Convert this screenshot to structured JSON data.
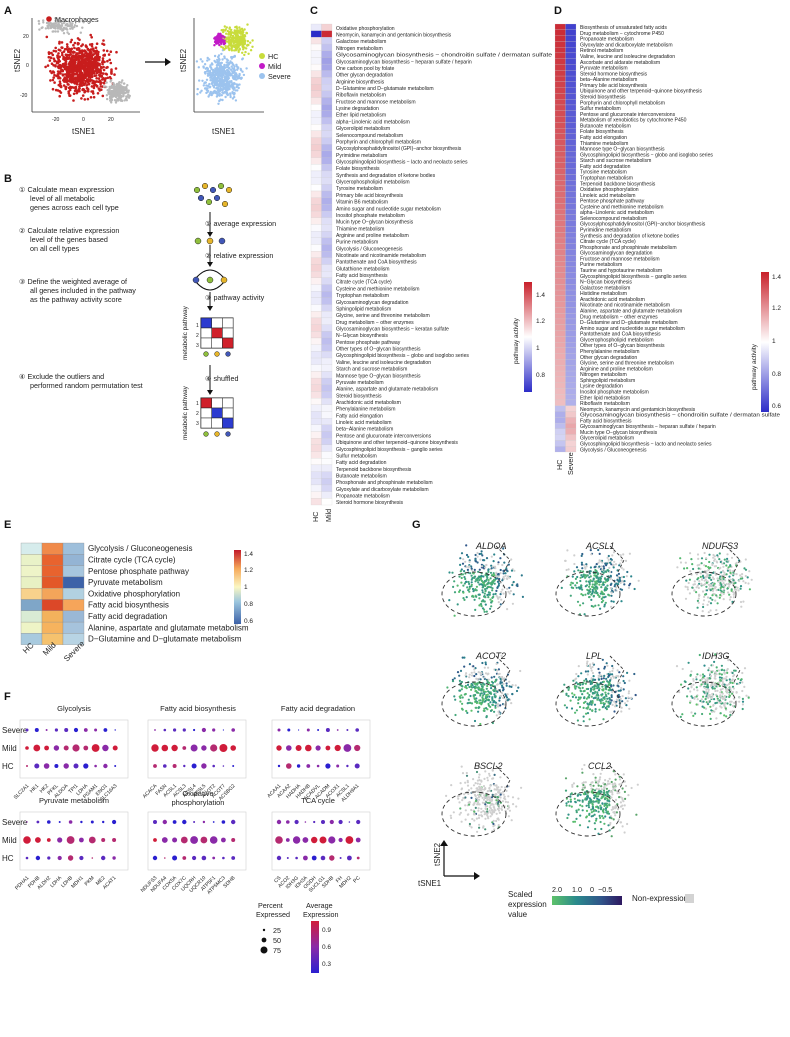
{
  "panels": {
    "A": {
      "letter": "A",
      "legend": [
        "Macrophages"
      ],
      "legend_b": [
        "HC",
        "Mild",
        "Severe"
      ],
      "xlabel": "tSNE1",
      "ylabel": "tSNE2",
      "ticks_x": [
        "-20",
        "0",
        "20"
      ],
      "ticks_y": [
        "20",
        "0",
        "-20"
      ],
      "colors": {
        "macrophage": "#c81d1d",
        "other": "#b8b8b8",
        "hc": "#c8dc3c",
        "mild": "#c21bc7",
        "severe": "#9cc3ee"
      }
    },
    "B": {
      "letter": "B",
      "steps": [
        [
          "① Calculate mean expression",
          "level of all metabolic",
          "genes across each cell type"
        ],
        [
          "② Calculate relative expression",
          "level of the genes based",
          "on all cell types"
        ],
        [
          "③ Define the weighted average of",
          "all genes included in the pathway",
          "as the pathway activity score"
        ],
        [
          "④ Exclude the outliers and",
          "performed random permutation test"
        ]
      ],
      "flow": [
        "① average expression",
        "② relative expression",
        "③ pathway activity",
        "④ shuffled"
      ],
      "axis_label": "metabolic pathway",
      "row_labels": [
        "1",
        "2",
        "3"
      ]
    },
    "C": {
      "letter": "C",
      "columns": [
        "HC",
        "Mild"
      ],
      "legend_title": "pathway activity",
      "legend_ticks": [
        "1.4",
        "1.2",
        "1",
        "0.8"
      ],
      "pathways": [
        "Oxidative phosphorylation",
        "Neomycin, kanamycin and gentamicin biosynthesis",
        "Galactose metabolism",
        "Nitrogen metabolism",
        "Glycosaminoglycan biosynthesis − chondroitin sulfate / dermatan sulfate",
        "Glycosaminoglycan biosynthesis − heparan sulfate / heparin",
        "One carbon pool by folate",
        "Other glycan degradation",
        "Arginine biosynthesis",
        "D−Glutamine and D−glutamate metabolism",
        "Riboflavin metabolism",
        "Fructose and mannose metabolism",
        "Lysine degradation",
        "Ether lipid metabolism",
        "alpha−Linolenic acid metabolism",
        "Glycerolipid metabolism",
        "Selenocompound metabolism",
        "Porphyrin and chlorophyll metabolism",
        "Glycosylphosphatidylinositol (GPI)−anchor biosynthesis",
        "Pyrimidine metabolism",
        "Glycosphingolipid biosynthesis − lacto and neolacto series",
        "Folate biosynthesis",
        "Synthesis and degradation of ketone bodies",
        "Glycerophospholipid metabolism",
        "Tyrosine metabolism",
        "Primary bile acid biosynthesis",
        "Vitamin B6 metabolism",
        "Amino sugar and nucleotide sugar metabolism",
        "Inositol phosphate metabolism",
        "Mucin type O−glycan biosynthesis",
        "Thiamine metabolism",
        "Arginine and proline metabolism",
        "Purine metabolism",
        "Glycolysis / Gluconeogenesis",
        "Nicotinate and nicotinamide metabolism",
        "Pantothenate and CoA biosynthesis",
        "Glutathione metabolism",
        "Fatty acid biosynthesis",
        "Citrate cycle (TCA cycle)",
        "Cysteine and methionine metabolism",
        "Tryptophan metabolism",
        "Glycosaminoglycan degradation",
        "Sphingolipid metabolism",
        "Glycine, serine and threonine metabolism",
        "Drug metabolism − other enzymes",
        "Glycosaminoglycan biosynthesis − keratan sulfate",
        "N−Glycan biosynthesis",
        "Pentose phosphate pathway",
        "Other types of O−glycan biosynthesis",
        "Glycosphingolipid biosynthesis − globo and isoglobo series",
        "Valine, leucine and isoleucine degradation",
        "Starch and sucrose metabolism",
        "Mannose type O−glycan biosynthesis",
        "Pyruvate metabolism",
        "Alanine, aspartate and glutamate metabolism",
        "Steroid biosynthesis",
        "Arachidonic acid metabolism",
        "Phenylalanine metabolism",
        "Fatty acid elongation",
        "Linoleic acid metabolism",
        "beta−Alanine metabolism",
        "Pentose and glucuronate interconversions",
        "Ubiquinone and other terpenoid−quinone biosynthesis",
        "Glycosphingolipid biosynthesis − ganglio series",
        "Sulfur metabolism",
        "Fatty acid degradation",
        "Terpenoid backbone biosynthesis",
        "Butanoate metabolism",
        "Phosphonate and phosphinate metabolism",
        "Glyoxylate and dicarboxylate metabolism",
        "Propanoate metabolism",
        "Steroid hormone biosynthesis"
      ]
    },
    "D": {
      "letter": "D",
      "columns": [
        "HC",
        "Severe"
      ],
      "legend_title": "pathway activity",
      "legend_ticks": [
        "1.4",
        "1.2",
        "1",
        "0.8",
        "0.6"
      ],
      "pathways": [
        "Biosynthesis of unsaturated fatty acids",
        "Drug metabolism − cytochrome P450",
        "Propanoate metabolism",
        "Glyoxylate and dicarboxylate metabolism",
        "Retinol metabolism",
        "Valine, leucine and isoleucine degradation",
        "Ascorbate and aldarate metabolism",
        "Pyruvate metabolism",
        "Steroid hormone biosynthesis",
        "beta−Alanine metabolism",
        "Primary bile acid biosynthesis",
        "Ubiquinone and other terpenoid−quinone biosynthesis",
        "Steroid biosynthesis",
        "Porphyrin and chlorophyll metabolism",
        "Sulfur metabolism",
        "Pentose and glucuronate interconversions",
        "Metabolism of xenobiotics by cytochrome P450",
        "Butanoate metabolism",
        "Folate biosynthesis",
        "Fatty acid elongation",
        "Thiamine metabolism",
        "Mannose type O−glycan biosynthesis",
        "Glycosphingolipid biosynthesis − globo and isoglobo series",
        "Starch and sucrose metabolism",
        "Fatty acid degradation",
        "Tyrosine metabolism",
        "Tryptophan metabolism",
        "Terpenoid backbone biosynthesis",
        "Oxidative phosphorylation",
        "Linoleic acid metabolism",
        "Pentose phosphate pathway",
        "Cysteine and methionine metabolism",
        "alpha−Linolenic acid metabolism",
        "Selenocompound metabolism",
        "Glycosylphosphatidylinositol (GPI)−anchor biosynthesis",
        "Pyrimidine metabolism",
        "Synthesis and degradation of ketone bodies",
        "Citrate cycle (TCA cycle)",
        "Phosphonate and phosphinate metabolism",
        "Glycosaminoglycan degradation",
        "Fructose and mannose metabolism",
        "Purine metabolism",
        "Taurine and hypotaurine metabolism",
        "Glycosphingolipid biosynthesis − ganglio series",
        "N−Glycan biosynthesis",
        "Galactose metabolism",
        "Histidine metabolism",
        "Arachidonic acid metabolism",
        "Nicotinate and nicotinamide metabolism",
        "Alanine, aspartate and glutamate metabolism",
        "Drug metabolism − other enzymes",
        "D−Glutamine and D−glutamate metabolism",
        "Amino sugar and nucleotide sugar metabolism",
        "Pantothenate and CoA biosynthesis",
        "Glycerophospholipid metabolism",
        "Other types of O−glycan biosynthesis",
        "Phenylalanine metabolism",
        "Other glycan degradation",
        "Glycine, serine and threonine metabolism",
        "Arginine and proline metabolism",
        "Nitrogen metabolism",
        "Sphingolipid metabolism",
        "Lysine degradation",
        "Inositol phosphate metabolism",
        "Ether lipid metabolism",
        "Riboflavin metabolism",
        "Neomycin, kanamycin and gentamicin biosynthesis",
        "Glycosaminoglycan biosynthesis − chondroitin sulfate / dermatan sulfate",
        "Fatty acid biosynthesis",
        "Glycosaminoglycan biosynthesis − heparan sulfate / heparin",
        "Mucin type O−glycan biosynthesis",
        "Glycerolipid metabolism",
        "Glycosphingolipid biosynthesis − lacto and neolacto series",
        "Glycolysis / Gluconeogenesis"
      ]
    },
    "E": {
      "letter": "E",
      "columns": [
        "HC",
        "Mild",
        "Severe"
      ],
      "rows": [
        "Glycolysis / Gluconeogenesis",
        "Citrate cycle (TCA cycle)",
        "Pentose phosphate pathway",
        "Pyruvate metabolism",
        "Oxidative phosphorylation",
        "Fatty acid biosynthesis",
        "Fatty acid degradation",
        "Alanine, aspartate and glutamate metabolism",
        "D−Glutamine and D−glutamate metabolism"
      ],
      "legend_ticks": [
        "1.4",
        "1.2",
        "1",
        "0.8",
        "0.6"
      ]
    },
    "F": {
      "letter": "F",
      "groups": [
        "Severe",
        "Mild",
        "HC"
      ],
      "legend": {
        "pct_title": [
          "Percent",
          "Expressed"
        ],
        "pct_values": [
          "25",
          "50",
          "75"
        ],
        "avg_title": [
          "Average",
          "Expression"
        ],
        "avg_ticks": [
          "0.9",
          "0.6",
          "0.3"
        ]
      },
      "subplots": [
        {
          "title": [
            "Glycolysis"
          ],
          "genes": [
            "SLC2A1",
            "HK1",
            "HK2",
            "PFKL",
            "ALDOA",
            "TPI1",
            "LDHA",
            "PGAM1",
            "ENO1",
            "SLC16A3"
          ]
        },
        {
          "title": [
            "Fatty acid biosynthesis"
          ],
          "genes": [
            "ACACA",
            "FASN",
            "ACSL1",
            "ACSL3",
            "ACSL4",
            "ACSL5",
            "ACOT2",
            "ACOT7",
            "ACSBG2"
          ]
        },
        {
          "title": [
            "Fatty acid degradation"
          ],
          "genes": [
            "ACAA1",
            "ACAA2",
            "HADHA",
            "HADHB",
            "ACADVL",
            "ACADM",
            "ACOX1",
            "ACSL1",
            "ALDH9A1"
          ]
        },
        {
          "title": [
            "Pyruvate metabolism"
          ],
          "genes": [
            "PDHA1",
            "PDHB",
            "ALDH2",
            "LDHA",
            "LDHB",
            "MDH1",
            "PKM",
            "ME2",
            "ACAT1"
          ]
        },
        {
          "title": [
            "Oxidative",
            "phosphorylation"
          ],
          "genes": [
            "NDUFS3",
            "NDUFA4",
            "COX5A",
            "COX7C",
            "UQCRH",
            "UQCR10",
            "ATP5F1",
            "ATP5MC3",
            "SDHB"
          ]
        },
        {
          "title": [
            "TCA cycle"
          ],
          "genes": [
            "CS",
            "ACO2",
            "IDH3G",
            "IDH3A",
            "OGDH",
            "SUCLG1",
            "SDHB",
            "FH",
            "MDH2",
            "PC"
          ]
        }
      ]
    },
    "G": {
      "letter": "G",
      "genes": [
        "ALDOA",
        "ACSL1",
        "NDUFS3",
        "ACOT2",
        "LPL",
        "IDH3G",
        "BSCL2",
        "CCL2"
      ],
      "xlabel": "tSNE1",
      "ylabel": "tSNE2",
      "legend_title": [
        "Scaled",
        "expression",
        "value"
      ],
      "legend_ticks": [
        "2.0",
        "1.0",
        "0",
        "−0.5"
      ],
      "nonexp_label": "Non-expression"
    }
  }
}
